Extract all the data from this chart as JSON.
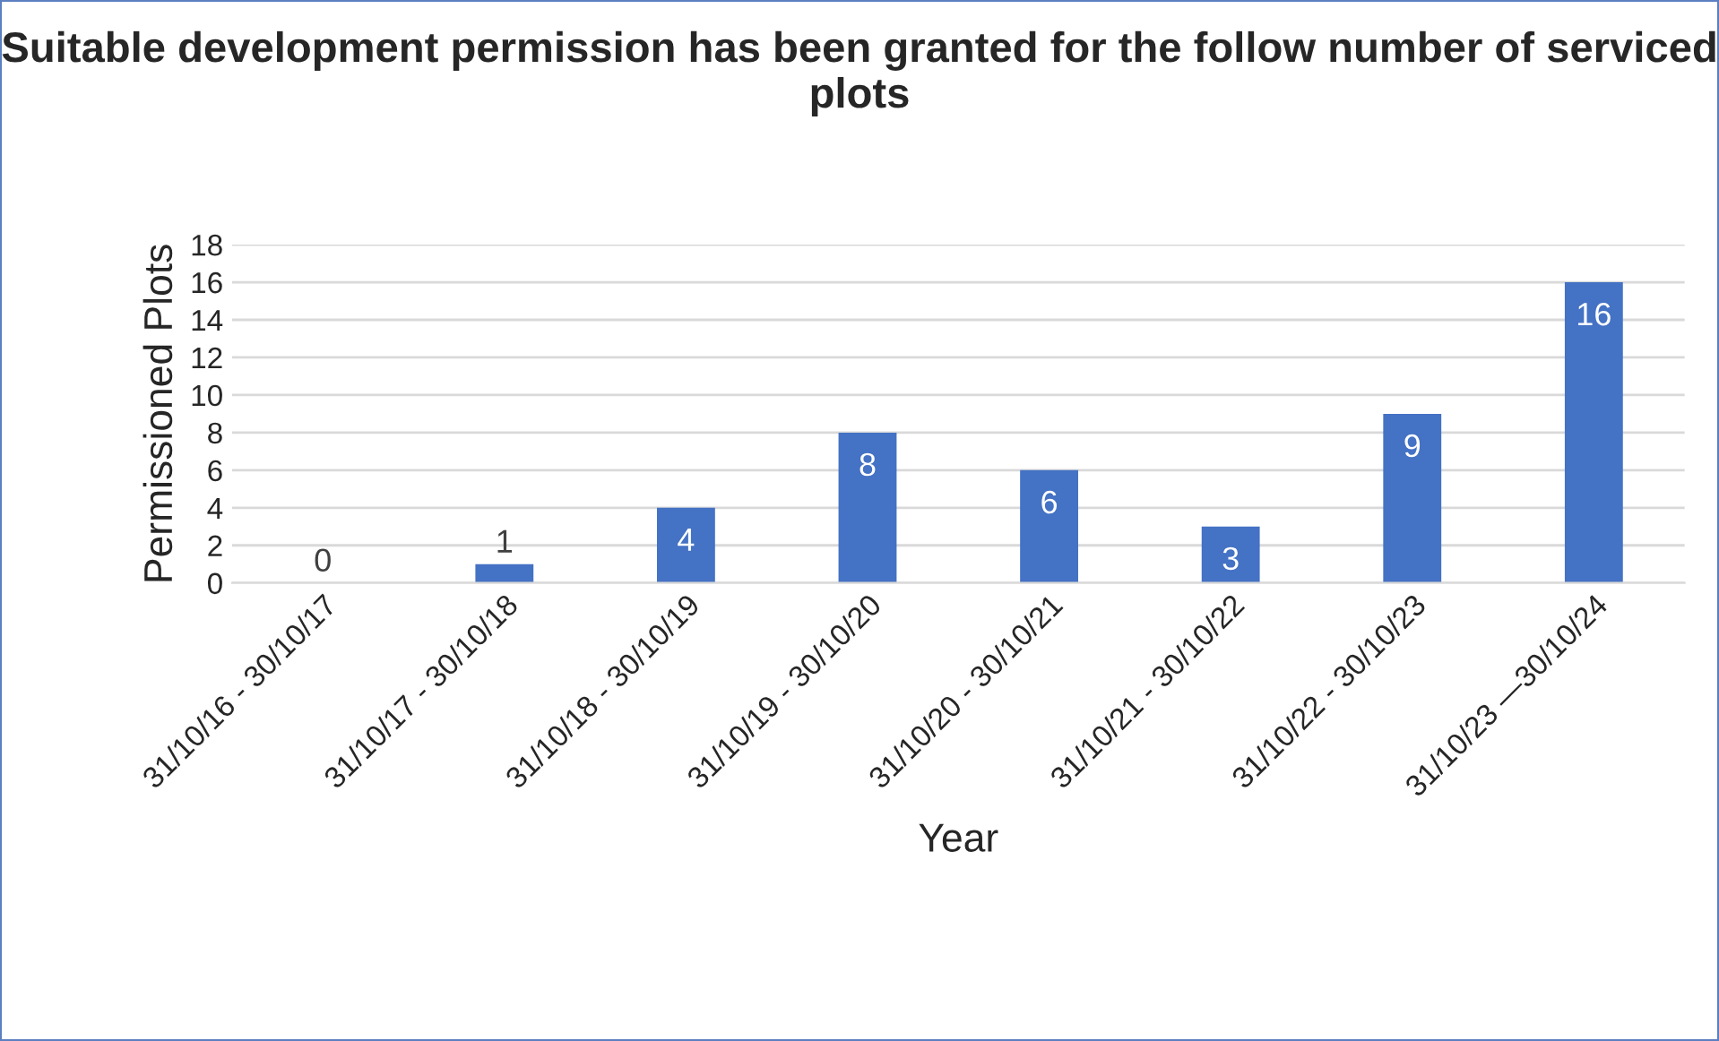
{
  "chart_data": {
    "type": "bar",
    "title": "Suitable development permission has been granted for the follow number of serviced plots",
    "xlabel": "Year",
    "ylabel": "Permissioned Plots",
    "categories": [
      "31/10/16 - 30/10/17",
      "31/10/17 - 30/10/18",
      "31/10/18 - 30/10/19",
      "31/10/19 - 30/10/20",
      "31/10/20 - 30/10/21",
      "31/10/21 - 30/10/22",
      "31/10/22 - 30/10/23",
      "31/10/23 —30/10/24"
    ],
    "values": [
      0,
      1,
      4,
      8,
      6,
      3,
      9,
      16
    ],
    "color": "#4472c4",
    "ylim": [
      0,
      18
    ],
    "yticks": [
      0,
      2,
      4,
      6,
      8,
      10,
      12,
      14,
      16,
      18
    ],
    "grid": "y",
    "data_labels": true
  }
}
